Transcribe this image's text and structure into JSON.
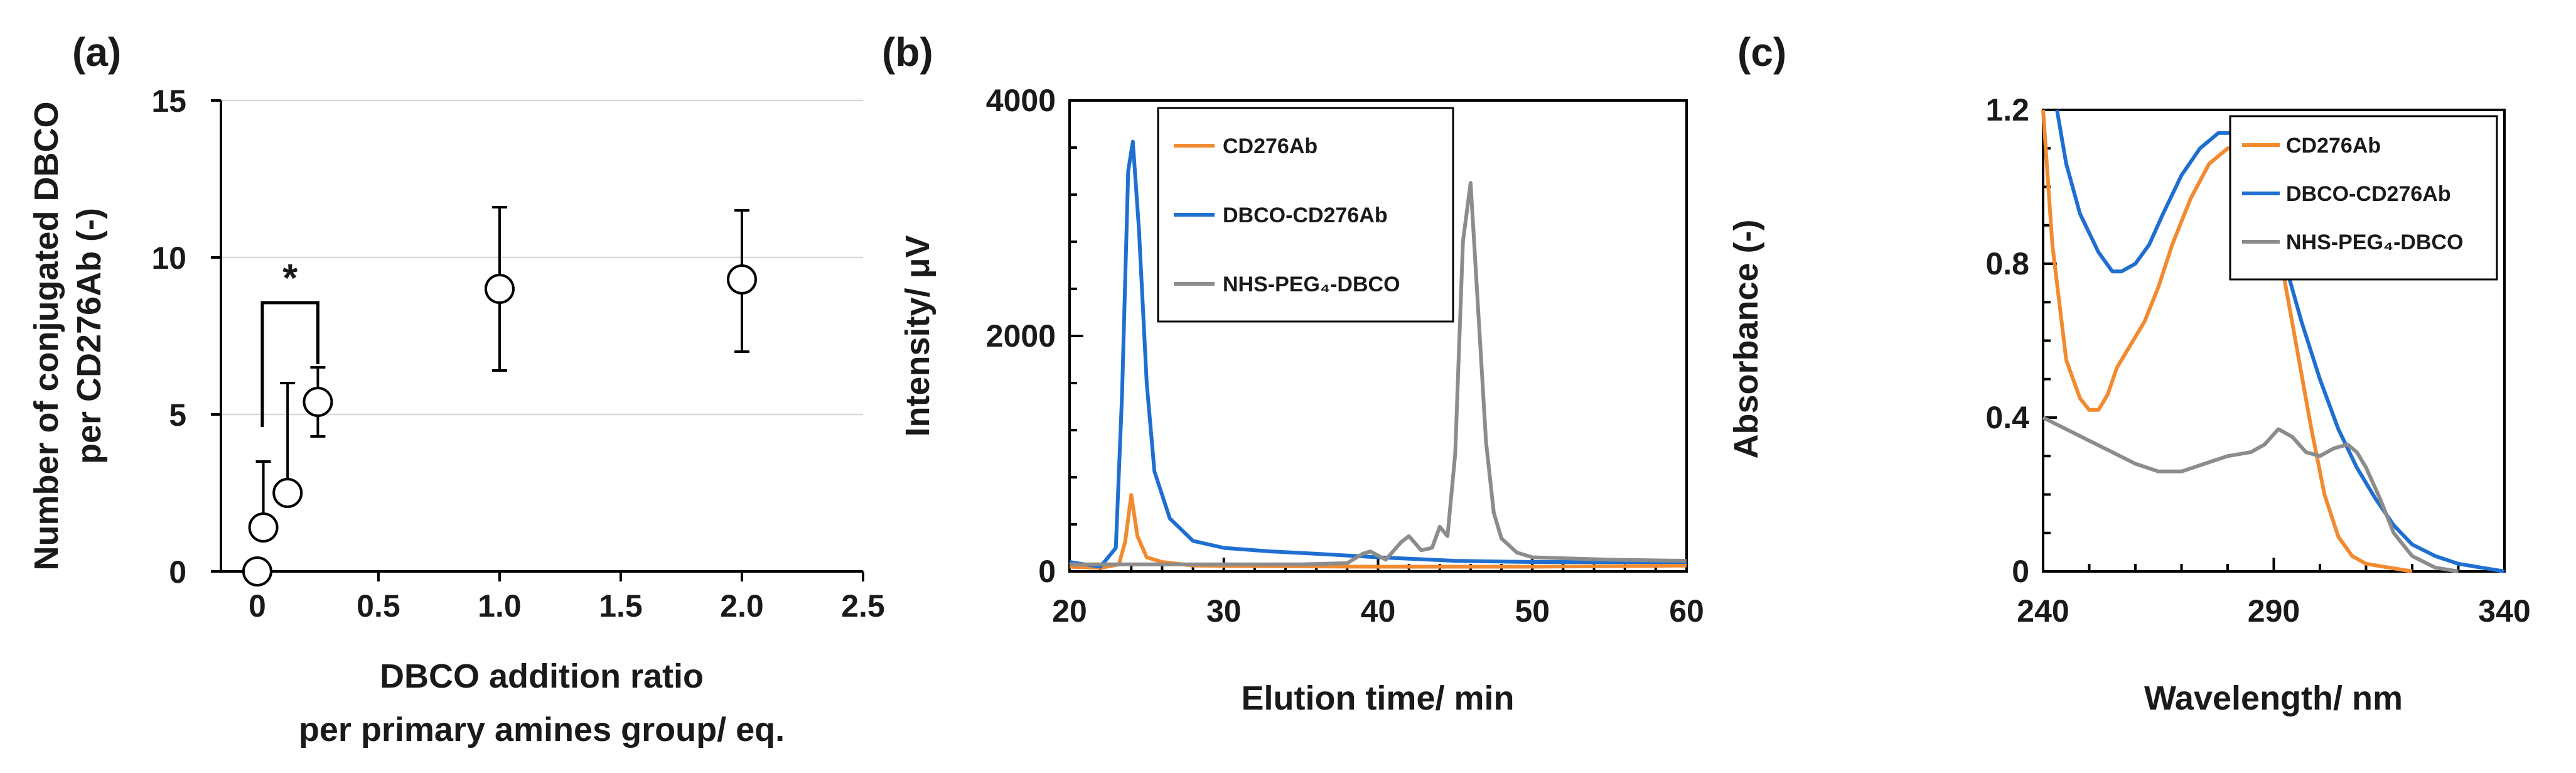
{
  "chart_data": [
    {
      "panel": "(a)",
      "type": "scatter",
      "title": "",
      "xlabel_lines": [
        "DBCO addition ratio",
        "per primary amines group/ eq."
      ],
      "ylabel_lines": [
        "Number of conjugated DBCO",
        "per CD276Ab (-)"
      ],
      "xlim": [
        0,
        2.5
      ],
      "ylim": [
        0,
        15
      ],
      "xticks": [
        "0",
        "0.5",
        "1.0",
        "1.5",
        "2.0",
        "2.5"
      ],
      "yticks": [
        "0",
        "5",
        "10",
        "15"
      ],
      "grid": true,
      "points": [
        {
          "x": 0.0,
          "y": 0.0,
          "err_low": 0.0,
          "err_high": 0.0
        },
        {
          "x": 0.025,
          "y": 1.4,
          "err_low": 1.4,
          "err_high": 3.5
        },
        {
          "x": 0.125,
          "y": 2.5,
          "err_low": 2.5,
          "err_high": 6.0
        },
        {
          "x": 0.25,
          "y": 5.4,
          "err_low": 4.3,
          "err_high": 6.5
        },
        {
          "x": 1.0,
          "y": 9.0,
          "err_low": 6.4,
          "err_high": 11.6
        },
        {
          "x": 2.0,
          "y": 9.3,
          "err_low": 7.0,
          "err_high": 11.5
        }
      ],
      "significance": {
        "label": "*",
        "x1": 0.0,
        "x2": 0.25,
        "bracket_y": 10.0
      }
    },
    {
      "panel": "(b)",
      "type": "line",
      "title": "",
      "xlabel": "Elution time/ min",
      "ylabel": "Intensity/ μV",
      "xlim": [
        20,
        60
      ],
      "ylim": [
        0,
        4000
      ],
      "xticks": [
        "20",
        "30",
        "40",
        "50",
        "60"
      ],
      "yticks": [
        "0",
        "2000",
        "4000"
      ],
      "legend": "top-left",
      "series": [
        {
          "name": "CD276Ab",
          "color": "#F28A30",
          "x": [
            20,
            22,
            23.2,
            23.6,
            24,
            24.4,
            25,
            26,
            28,
            32,
            40,
            45,
            50,
            55,
            60
          ],
          "y": [
            40,
            30,
            60,
            250,
            650,
            300,
            120,
            80,
            50,
            45,
            40,
            40,
            40,
            45,
            50
          ]
        },
        {
          "name": "DBCO-CD276Ab",
          "color": "#1F6FD1",
          "x": [
            20,
            21,
            22,
            23,
            23.4,
            23.8,
            24.1,
            24.5,
            25,
            25.5,
            26.5,
            28,
            30,
            33,
            36,
            40,
            45,
            50,
            55,
            60
          ],
          "y": [
            80,
            60,
            40,
            200,
            1500,
            3400,
            3650,
            2900,
            1600,
            850,
            450,
            260,
            200,
            170,
            150,
            120,
            90,
            80,
            80,
            80
          ]
        },
        {
          "name": "NHS-PEG₄-DBCO",
          "color": "#8C8C8C",
          "x": [
            20,
            25,
            30,
            35,
            38,
            39,
            39.5,
            40.5,
            41.5,
            42,
            42.8,
            43.5,
            44,
            44.5,
            45,
            45.5,
            46,
            46.5,
            47,
            47.5,
            48,
            49,
            50,
            55,
            60
          ],
          "y": [
            60,
            60,
            60,
            60,
            70,
            150,
            170,
            100,
            250,
            300,
            180,
            200,
            380,
            300,
            1000,
            2800,
            3300,
            2200,
            1100,
            500,
            280,
            160,
            120,
            100,
            90
          ]
        }
      ]
    },
    {
      "panel": "(c)",
      "type": "line",
      "title": "",
      "xlabel": "Wavelength/ nm",
      "ylabel": "Absorbance (-)",
      "xlim": [
        240,
        340
      ],
      "ylim": [
        0,
        1.2
      ],
      "xticks": [
        "240",
        "290",
        "340"
      ],
      "yticks": [
        "0",
        "0.4",
        "0.8",
        "1.2"
      ],
      "legend": "top-right",
      "series": [
        {
          "name": "CD276Ab",
          "color": "#F28A30",
          "x": [
            240,
            242,
            245,
            248,
            250,
            252,
            254,
            256,
            258,
            260,
            262,
            265,
            268,
            272,
            276,
            280,
            283,
            286,
            289,
            292,
            295,
            298,
            301,
            304,
            307,
            310,
            315,
            320
          ],
          "y": [
            1.2,
            0.85,
            0.55,
            0.45,
            0.42,
            0.42,
            0.46,
            0.53,
            0.57,
            0.61,
            0.65,
            0.74,
            0.85,
            0.97,
            1.06,
            1.1,
            1.1,
            1.05,
            0.95,
            0.78,
            0.58,
            0.38,
            0.2,
            0.09,
            0.04,
            0.02,
            0.01,
            0.0
          ]
        },
        {
          "name": "DBCO-CD276Ab",
          "color": "#1F6FD1",
          "x": [
            243,
            245,
            248,
            252,
            255,
            257,
            260,
            263,
            266,
            270,
            274,
            278,
            281,
            283,
            286,
            289,
            292,
            296,
            300,
            304,
            308,
            312,
            316,
            320,
            325,
            330,
            335,
            340
          ],
          "y": [
            1.2,
            1.06,
            0.93,
            0.83,
            0.78,
            0.78,
            0.8,
            0.85,
            0.93,
            1.03,
            1.1,
            1.14,
            1.14,
            1.12,
            1.05,
            0.95,
            0.82,
            0.65,
            0.5,
            0.37,
            0.27,
            0.19,
            0.12,
            0.07,
            0.04,
            0.02,
            0.01,
            0.0
          ]
        },
        {
          "name": "NHS-PEG₄-DBCO",
          "color": "#8C8C8C",
          "x": [
            240,
            245,
            250,
            255,
            260,
            265,
            270,
            275,
            280,
            285,
            288,
            291,
            294,
            297,
            300,
            303,
            306,
            308,
            310,
            313,
            316,
            320,
            325,
            330
          ],
          "y": [
            0.4,
            0.37,
            0.34,
            0.31,
            0.28,
            0.26,
            0.26,
            0.28,
            0.3,
            0.31,
            0.33,
            0.37,
            0.35,
            0.31,
            0.3,
            0.32,
            0.33,
            0.31,
            0.27,
            0.19,
            0.1,
            0.04,
            0.01,
            0.0
          ]
        }
      ]
    }
  ]
}
